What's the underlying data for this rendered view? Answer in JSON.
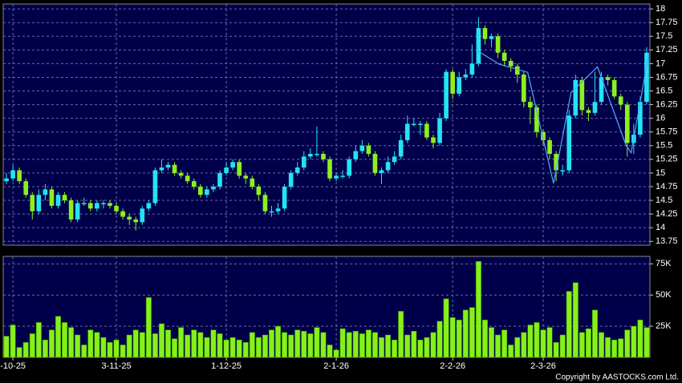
{
  "chart_data": [
    {
      "type": "candlestick",
      "up_color": "#22e4f4",
      "down_color": "#8cf01e",
      "xlim": [
        -0.5,
        99.5
      ],
      "ylim": [
        13.68,
        18.09
      ],
      "yticks": [
        13.75,
        14,
        14.25,
        14.5,
        14.75,
        15,
        15.25,
        15.5,
        15.75,
        16,
        16.25,
        16.5,
        16.75,
        17,
        17.25,
        17.5,
        17.75,
        18
      ],
      "grid": true,
      "open": [
        14.85,
        14.9,
        15.05,
        14.85,
        14.6,
        14.3,
        14.6,
        14.7,
        14.4,
        14.6,
        14.5,
        14.15,
        14.45,
        14.45,
        14.35,
        14.45,
        14.45,
        14.4,
        14.3,
        14.2,
        14.15,
        14.1,
        14.35,
        14.45,
        15.05,
        15.1,
        15.15,
        15.0,
        14.95,
        14.85,
        14.75,
        14.6,
        14.7,
        14.75,
        15.0,
        15.1,
        15.2,
        14.95,
        14.9,
        14.75,
        14.6,
        14.3,
        14.3,
        14.35,
        14.75,
        15.0,
        15.1,
        15.3,
        15.35,
        15.35,
        15.25,
        14.9,
        14.95,
        14.95,
        15.25,
        15.4,
        15.5,
        15.35,
        15.0,
        15.05,
        15.2,
        15.3,
        15.6,
        15.9,
        15.9,
        15.9,
        15.65,
        15.55,
        16.0,
        16.85,
        16.45,
        16.75,
        16.8,
        17.0,
        17.65,
        17.45,
        17.5,
        17.2,
        17.05,
        16.95,
        16.8,
        16.3,
        16.2,
        15.75,
        15.6,
        15.35,
        15.05,
        15.05,
        16.05,
        16.7,
        16.15,
        16.1,
        16.3,
        16.75,
        16.7,
        16.4,
        16.25,
        15.55,
        15.7,
        16.3
      ],
      "high": [
        15.0,
        15.15,
        15.1,
        14.9,
        14.65,
        14.7,
        14.8,
        14.75,
        14.65,
        14.65,
        14.55,
        14.5,
        14.55,
        14.5,
        14.5,
        14.5,
        14.5,
        14.45,
        14.35,
        14.25,
        14.2,
        14.4,
        14.5,
        15.1,
        15.25,
        15.2,
        15.2,
        15.05,
        15.0,
        14.9,
        14.8,
        14.75,
        14.8,
        15.05,
        15.2,
        15.25,
        15.25,
        15.0,
        14.95,
        14.8,
        14.65,
        14.4,
        14.45,
        14.8,
        15.05,
        15.2,
        15.4,
        15.45,
        15.85,
        15.4,
        15.3,
        15.0,
        15.05,
        15.3,
        15.5,
        15.6,
        15.55,
        15.4,
        15.1,
        15.3,
        15.4,
        15.7,
        16.05,
        16.0,
        15.95,
        15.95,
        15.7,
        16.1,
        16.9,
        16.9,
        16.85,
        16.9,
        17.35,
        17.85,
        17.7,
        17.55,
        17.55,
        17.25,
        17.1,
        17.0,
        16.85,
        16.4,
        16.25,
        15.8,
        15.65,
        15.4,
        15.15,
        16.15,
        16.8,
        16.75,
        16.2,
        16.85,
        16.85,
        16.8,
        16.75,
        16.45,
        16.3,
        15.9,
        16.4,
        17.3
      ],
      "low": [
        14.8,
        14.85,
        14.8,
        14.55,
        14.15,
        14.25,
        14.5,
        14.35,
        14.35,
        14.45,
        14.1,
        14.1,
        14.4,
        14.3,
        14.3,
        14.35,
        14.35,
        14.25,
        14.15,
        14.05,
        13.95,
        14.05,
        14.3,
        14.4,
        15.0,
        15.05,
        14.95,
        14.9,
        14.8,
        14.7,
        14.55,
        14.55,
        14.65,
        14.7,
        14.95,
        15.05,
        14.9,
        14.8,
        14.7,
        14.5,
        14.25,
        14.2,
        14.25,
        14.3,
        14.7,
        14.95,
        15.05,
        15.25,
        15.3,
        15.2,
        14.85,
        14.85,
        14.9,
        14.9,
        15.2,
        15.35,
        15.3,
        14.95,
        14.8,
        15.0,
        15.15,
        15.25,
        15.55,
        15.85,
        15.7,
        15.6,
        15.45,
        15.5,
        15.95,
        16.35,
        16.4,
        16.7,
        16.75,
        16.95,
        17.35,
        17.3,
        17.1,
        16.95,
        16.85,
        16.65,
        16.2,
        15.9,
        15.65,
        15.5,
        15.25,
        14.85,
        14.95,
        15.0,
        16.0,
        16.05,
        15.95,
        16.05,
        16.25,
        16.6,
        16.35,
        16.15,
        15.3,
        15.35,
        15.65,
        16.25
      ],
      "close": [
        14.9,
        15.05,
        14.85,
        14.6,
        14.3,
        14.6,
        14.7,
        14.4,
        14.6,
        14.5,
        14.15,
        14.45,
        14.45,
        14.35,
        14.45,
        14.45,
        14.4,
        14.3,
        14.2,
        14.15,
        14.1,
        14.35,
        14.45,
        15.05,
        15.1,
        15.15,
        15.0,
        14.95,
        14.85,
        14.75,
        14.6,
        14.7,
        14.75,
        15.0,
        15.1,
        15.2,
        14.95,
        14.9,
        14.75,
        14.6,
        14.3,
        14.3,
        14.35,
        14.75,
        15.0,
        15.1,
        15.3,
        15.35,
        15.35,
        15.25,
        14.9,
        14.95,
        14.95,
        15.25,
        15.4,
        15.5,
        15.35,
        15.0,
        15.05,
        15.2,
        15.3,
        15.6,
        15.9,
        15.9,
        15.9,
        15.65,
        15.55,
        16.0,
        16.85,
        16.45,
        16.75,
        16.8,
        17.0,
        17.65,
        17.45,
        17.5,
        17.2,
        17.05,
        16.95,
        16.8,
        16.3,
        16.2,
        15.75,
        15.6,
        15.35,
        15.05,
        15.05,
        16.05,
        16.7,
        16.15,
        16.1,
        16.3,
        16.75,
        16.7,
        16.4,
        16.25,
        15.55,
        15.7,
        16.3,
        17.2
      ],
      "overlay": {
        "color": "#4fa8ff",
        "x": [
          72.6,
          76.2,
          80.6,
          84.6,
          87.3,
          91.4,
          95.8,
          96.6,
          99.3
        ],
        "values": [
          17.25,
          16.99,
          16.84,
          14.81,
          16.47,
          16.94,
          15.51,
          15.37,
          17.16
        ]
      }
    },
    {
      "type": "bar",
      "color": "#86f01a",
      "xlim": [
        -0.5,
        99.5
      ],
      "ylim": [
        0,
        81000
      ],
      "yticks": [
        {
          "value": 25000,
          "label": "25K"
        },
        {
          "value": 50000,
          "label": "50K"
        },
        {
          "value": 75000,
          "label": "75K"
        }
      ],
      "xticks": [
        {
          "value": 1,
          "label": "-10-25"
        },
        {
          "value": 17,
          "label": "3-11-25"
        },
        {
          "value": 34,
          "label": "1-12-25"
        },
        {
          "value": 51,
          "label": "2-1-26"
        },
        {
          "value": 69,
          "label": "2-2-26"
        },
        {
          "value": 83,
          "label": "2-3-26"
        }
      ],
      "grid": true,
      "values": [
        17000,
        26000,
        8000,
        12000,
        19000,
        28000,
        14000,
        22000,
        33000,
        28000,
        24000,
        18000,
        10000,
        22000,
        20000,
        16000,
        12000,
        14000,
        10000,
        18000,
        22000,
        20000,
        48000,
        19000,
        27000,
        22000,
        15000,
        24000,
        18000,
        22000,
        20000,
        16000,
        22000,
        19000,
        14000,
        16000,
        14000,
        12000,
        20000,
        16000,
        18000,
        22000,
        25000,
        20000,
        18000,
        22000,
        21000,
        19000,
        24000,
        20000,
        10000,
        6000,
        23000,
        20000,
        21000,
        19000,
        22000,
        20000,
        16000,
        18000,
        14000,
        37000,
        18000,
        21000,
        14000,
        16000,
        20000,
        29000,
        47000,
        32000,
        30000,
        38000,
        40000,
        77000,
        30000,
        24000,
        18000,
        22000,
        10000,
        16000,
        20000,
        26000,
        28000,
        22000,
        24000,
        12000,
        18000,
        53000,
        60000,
        20000,
        23000,
        38000,
        20000,
        16000,
        14000,
        15000,
        22000,
        25000,
        30000,
        24000
      ]
    }
  ],
  "footer": "Copyright by AASTOCKS.com Ltd."
}
